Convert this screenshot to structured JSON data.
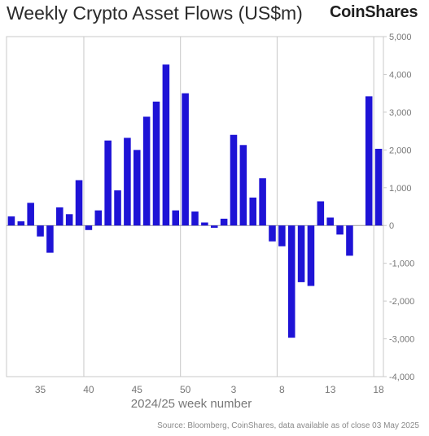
{
  "header": {
    "title": "Weekly Crypto Asset Flows (US$m)",
    "brand": "CoinShares"
  },
  "footer": {
    "source": "Source: Bloomberg, CoinShares, data available as of close 03 May 2025"
  },
  "colors": {
    "bar": "#1e13d6",
    "grid": "#c8c8c8",
    "axis_text": "#777777"
  },
  "chart_data": {
    "type": "bar",
    "title": "Weekly Crypto Asset Flows (US$m)",
    "xlabel": "2024/25 week number",
    "ylabel": "",
    "ylim": [
      -4000,
      5000
    ],
    "yticks": [
      5000,
      4000,
      3000,
      2000,
      1000,
      0,
      -1000,
      -2000,
      -3000,
      -4000
    ],
    "ytick_labels": [
      "5,000",
      "4,000",
      "3,000",
      "2,000",
      "1,000",
      "0",
      "-1,000",
      "-2,000",
      "-3,000",
      "-4,000"
    ],
    "categories": [
      "32",
      "33",
      "34",
      "35",
      "36",
      "37",
      "38",
      "39",
      "40",
      "41",
      "42",
      "43",
      "44",
      "45",
      "46",
      "47",
      "48",
      "49",
      "50",
      "51",
      "52",
      "1",
      "2",
      "3",
      "4",
      "5",
      "6",
      "7",
      "8",
      "9",
      "10",
      "11",
      "12",
      "13",
      "14",
      "15",
      "16",
      "17",
      "18"
    ],
    "xtick_labels": [
      {
        "category": "35",
        "label": "35"
      },
      {
        "category": "40",
        "label": "40"
      },
      {
        "category": "45",
        "label": "45"
      },
      {
        "category": "50",
        "label": "50"
      },
      {
        "category": "3",
        "label": "3"
      },
      {
        "category": "8",
        "label": "8"
      },
      {
        "category": "13",
        "label": "13"
      },
      {
        "category": "18",
        "label": "18"
      }
    ],
    "vertical_gridlines_after": [
      "39",
      "49",
      "7",
      "17"
    ],
    "values": [
      240,
      110,
      600,
      -290,
      -720,
      480,
      300,
      1200,
      -120,
      400,
      2250,
      930,
      2320,
      2000,
      2880,
      3280,
      4260,
      400,
      3500,
      370,
      80,
      -60,
      180,
      2400,
      2130,
      740,
      1250,
      -420,
      -550,
      -2970,
      -1500,
      -1600,
      640,
      210,
      -240,
      -800,
      0,
      3420,
      2030
    ],
    "grid": true,
    "legend": "none"
  }
}
